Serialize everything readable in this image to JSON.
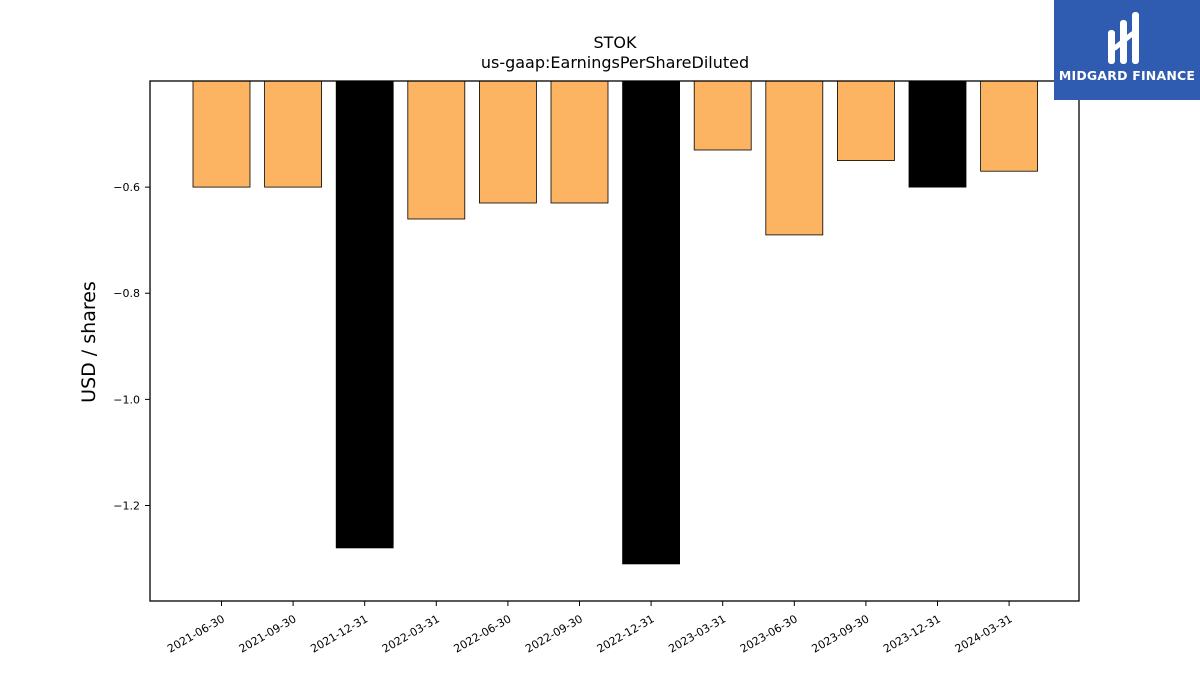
{
  "chart_data": {
    "type": "bar",
    "title": "STOK",
    "subtitle": "us-gaap:EarningsPerShareDiluted",
    "xlabel": "",
    "ylabel": "USD / shares",
    "categories": [
      "2021-06-30",
      "2021-09-30",
      "2021-12-31",
      "2022-03-31",
      "2022-06-30",
      "2022-09-30",
      "2022-12-31",
      "2023-03-31",
      "2023-06-30",
      "2023-09-30",
      "2023-12-31",
      "2024-03-31"
    ],
    "values": [
      -0.6,
      -0.6,
      -1.28,
      -0.66,
      -0.63,
      -0.63,
      -1.31,
      -0.53,
      -0.69,
      -0.55,
      -0.6,
      -0.57
    ],
    "bar_colors": [
      "#fdb462",
      "#fdb462",
      "#000000",
      "#fdb462",
      "#fdb462",
      "#fdb462",
      "#000000",
      "#fdb462",
      "#fdb462",
      "#fdb462",
      "#000000",
      "#fdb462"
    ],
    "yticks": [
      -0.6,
      -0.8,
      -1.0,
      -1.2
    ],
    "ytick_labels": [
      "−0.6",
      "−0.8",
      "−1.0",
      "−1.2"
    ],
    "ylim": [
      -1.38,
      -0.4
    ],
    "grid": false
  },
  "brand": {
    "name": "MIDGARD FINANCE",
    "color": "#2f5bb0",
    "icon": "midgard-logo-icon"
  }
}
